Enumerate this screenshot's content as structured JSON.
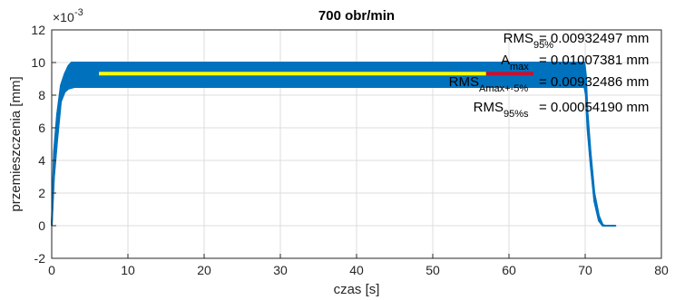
{
  "chart_data": {
    "type": "line",
    "title": "700 obr/min",
    "xlabel": "czas [s]",
    "ylabel": "przemieszczenia [mm]",
    "y_exponent_label": "×10",
    "y_exponent_power": "-3",
    "xlim": [
      0,
      80
    ],
    "ylim": [
      -2,
      12
    ],
    "x_ticks": [
      0,
      10,
      20,
      30,
      40,
      50,
      60,
      70,
      80
    ],
    "y_ticks": [
      -2,
      0,
      2,
      4,
      6,
      8,
      10,
      12
    ],
    "grid": true,
    "series": [
      {
        "role": "envelope-upper",
        "color": "#0072BD",
        "x": [
          0,
          0.3,
          0.7,
          1.2,
          1.7,
          2.2,
          2.6,
          3.0,
          69.9,
          70.1,
          70.3,
          70.7,
          71.2,
          71.8,
          72.3,
          72.6,
          73.0,
          74.0
        ],
        "y": [
          0.0,
          4.5,
          6.8,
          8.6,
          9.3,
          9.8,
          10.0,
          10.0,
          10.0,
          9.2,
          7.0,
          4.5,
          2.0,
          0.6,
          0.05,
          0.0,
          0.0,
          0.0
        ]
      },
      {
        "role": "envelope-lower",
        "color": "#0072BD",
        "x": [
          0,
          0.3,
          0.7,
          1.2,
          1.7,
          2.2,
          2.6,
          3.0,
          69.9,
          70.1,
          70.3,
          70.7,
          71.2,
          71.8,
          72.3,
          72.6,
          73.0,
          74.0
        ],
        "y": [
          0.0,
          3.0,
          5.2,
          7.6,
          8.2,
          8.4,
          8.45,
          8.5,
          8.5,
          8.0,
          6.0,
          3.8,
          1.5,
          0.3,
          0.0,
          0.0,
          0.0,
          0.0
        ]
      },
      {
        "role": "rms-95",
        "color": "#FFFF00",
        "x": [
          6.2,
          57.0
        ],
        "y": [
          9.32,
          9.32
        ]
      },
      {
        "role": "rms-amax",
        "color": "#C8102E",
        "x": [
          57.0,
          63.2
        ],
        "y": [
          9.32,
          9.32
        ]
      }
    ],
    "annotations": [
      {
        "base": "RMS",
        "sub": "95%",
        "value": "= 0.00932497 mm"
      },
      {
        "base": "A",
        "sub": "max",
        "value": "= 0.01007381 mm"
      },
      {
        "base": "RMS",
        "sub": "Amax+-5%",
        "value": "= 0.00932486 mm"
      },
      {
        "base": "RMS",
        "sub": "95%s",
        "value": "= 0.00054190 mm"
      }
    ]
  }
}
